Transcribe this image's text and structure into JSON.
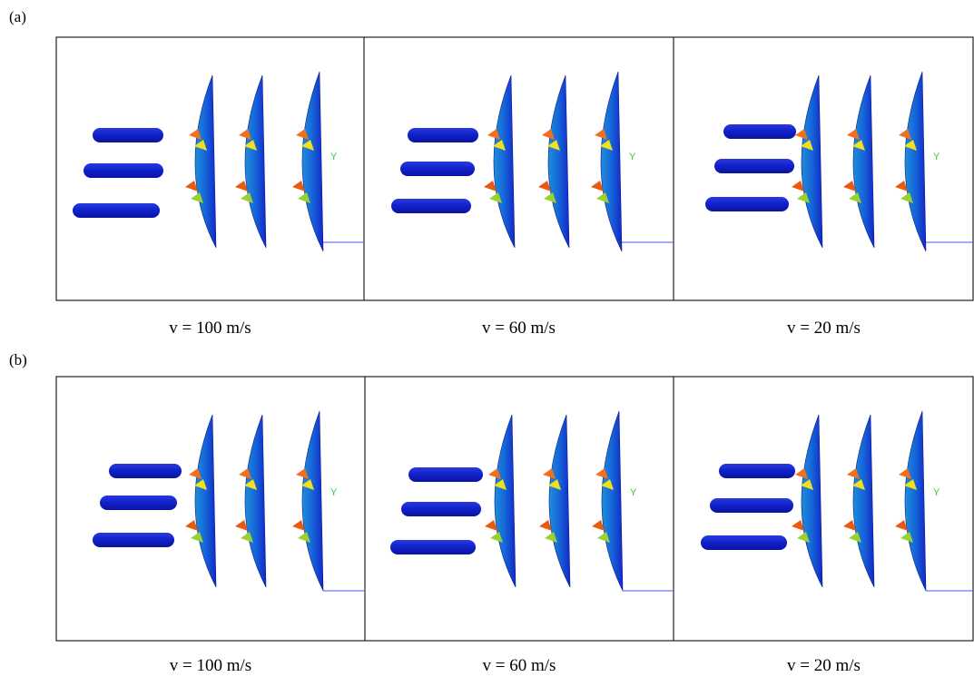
{
  "panels": [
    {
      "label": "(a)",
      "frames": [
        {
          "caption": "v = 100 m/s",
          "axis_label": "Y"
        },
        {
          "caption": "v = 60 m/s",
          "axis_label": "Y"
        },
        {
          "caption": "v = 20 m/s",
          "axis_label": "Y"
        }
      ]
    },
    {
      "label": "(b)",
      "frames": [
        {
          "caption": "v = 100 m/s",
          "axis_label": "Y"
        },
        {
          "caption": "v = 60 m/s",
          "axis_label": "Y"
        },
        {
          "caption": "v = 20 m/s",
          "axis_label": "Y"
        }
      ]
    }
  ]
}
